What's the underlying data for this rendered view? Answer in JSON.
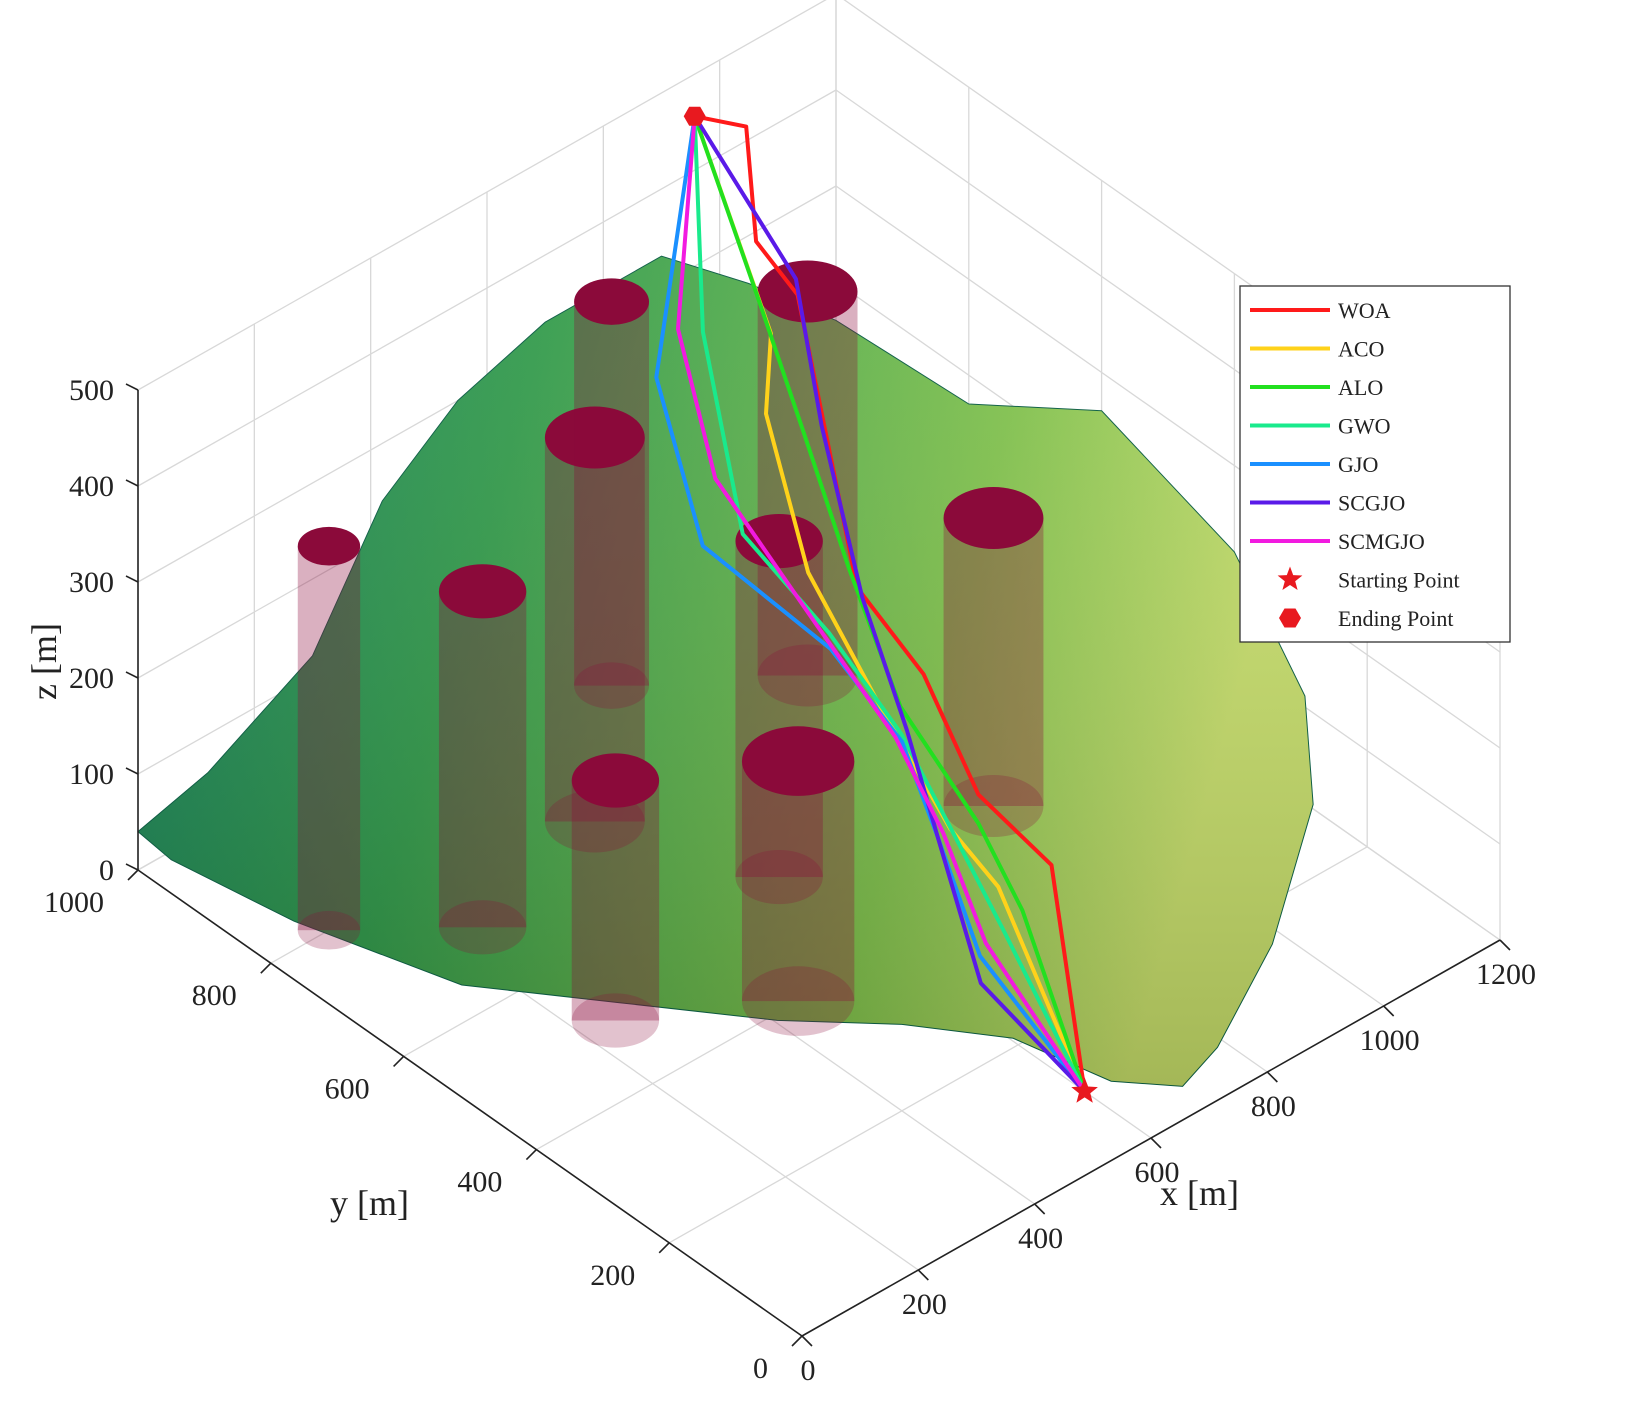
{
  "chart_data": {
    "type": "line",
    "view": "3d-perspective",
    "xlabel": "x [m]",
    "ylabel": "y [m]",
    "zlabel": "z [m]",
    "xlim": [
      0,
      1200
    ],
    "ylim": [
      0,
      1000
    ],
    "zlim": [
      0,
      500
    ],
    "x_ticks": [
      "0",
      "200",
      "400",
      "600",
      "800",
      "1000",
      "1200"
    ],
    "y_ticks": [
      "0",
      "200",
      "400",
      "600",
      "800",
      "1000"
    ],
    "z_ticks": [
      "0",
      "100",
      "200",
      "300",
      "400",
      "500"
    ],
    "grid": true,
    "legend_position": "top-right",
    "surface": {
      "kind": "terrain",
      "colormap": [
        "#0e7a5a",
        "#2f9a48",
        "#7fc24a",
        "#c8e06a"
      ]
    },
    "obstacles": {
      "shape": "cylinder",
      "color": "#8b0a3a",
      "items": [
        {
          "x": 100,
          "y": 800,
          "r": 50,
          "h": 400
        },
        {
          "x": 250,
          "y": 700,
          "r": 70,
          "h": 350
        },
        {
          "x": 500,
          "y": 750,
          "r": 80,
          "h": 400
        },
        {
          "x": 600,
          "y": 560,
          "r": 70,
          "h": 350
        },
        {
          "x": 700,
          "y": 900,
          "r": 60,
          "h": 400
        },
        {
          "x": 250,
          "y": 500,
          "r": 70,
          "h": 250
        },
        {
          "x": 450,
          "y": 400,
          "r": 90,
          "h": 250
        },
        {
          "x": 900,
          "y": 780,
          "r": 80,
          "h": 400
        },
        {
          "x": 900,
          "y": 500,
          "r": 80,
          "h": 300
        }
      ]
    },
    "start_point": {
      "x": 600,
      "y": 100,
      "z": 0,
      "color": "#e8191f",
      "marker": "pentagram"
    },
    "end_point": {
      "x": 900,
      "y": 950,
      "z": 500,
      "color": "#e8191f",
      "marker": "hexagram"
    },
    "series": [
      {
        "name": "WOA",
        "color": "#ff1a1a",
        "points": [
          [
            600,
            100,
            0
          ],
          [
            680,
            220,
            150
          ],
          [
            680,
            330,
            170
          ],
          [
            700,
            430,
            240
          ],
          [
            780,
            600,
            220
          ],
          [
            860,
            760,
            420
          ],
          [
            880,
            840,
            430
          ],
          [
            1000,
            960,
            450
          ],
          [
            900,
            950,
            500
          ]
        ]
      },
      {
        "name": "ACO",
        "color": "#ffd21a",
        "points": [
          [
            600,
            100,
            0
          ],
          [
            600,
            230,
            150
          ],
          [
            620,
            320,
            160
          ],
          [
            620,
            430,
            240
          ],
          [
            650,
            560,
            300
          ],
          [
            760,
            720,
            350
          ],
          [
            860,
            800,
            360
          ],
          [
            900,
            950,
            500
          ]
        ]
      },
      {
        "name": "ALO",
        "color": "#22e01f",
        "points": [
          [
            600,
            100,
            0
          ],
          [
            630,
            220,
            120
          ],
          [
            680,
            330,
            140
          ],
          [
            660,
            430,
            220
          ],
          [
            720,
            560,
            280
          ],
          [
            800,
            700,
            330
          ],
          [
            840,
            800,
            400
          ],
          [
            900,
            950,
            500
          ]
        ]
      },
      {
        "name": "GWO",
        "color": "#19ea8c",
        "points": [
          [
            600,
            100,
            0
          ],
          [
            610,
            230,
            100
          ],
          [
            640,
            330,
            140
          ],
          [
            650,
            420,
            200
          ],
          [
            640,
            520,
            260
          ],
          [
            640,
            650,
            300
          ],
          [
            720,
            780,
            420
          ],
          [
            900,
            950,
            500
          ]
        ]
      },
      {
        "name": "GJO",
        "color": "#1a90ff",
        "points": [
          [
            600,
            100,
            0
          ],
          [
            580,
            240,
            80
          ],
          [
            610,
            330,
            150
          ],
          [
            640,
            410,
            200
          ],
          [
            620,
            500,
            260
          ],
          [
            560,
            640,
            320
          ],
          [
            640,
            780,
            400
          ],
          [
            900,
            950,
            500
          ]
        ]
      },
      {
        "name": "SCGJO",
        "color": "#5a1ae8",
        "points": [
          [
            600,
            100,
            0
          ],
          [
            570,
            230,
            60
          ],
          [
            610,
            330,
            150
          ],
          [
            660,
            420,
            200
          ],
          [
            720,
            540,
            260
          ],
          [
            810,
            680,
            340
          ],
          [
            880,
            780,
            420
          ],
          [
            900,
            950,
            500
          ]
        ]
      },
      {
        "name": "SCMGJO",
        "color": "#f21ae0",
        "points": [
          [
            600,
            100,
            0
          ],
          [
            590,
            240,
            90
          ],
          [
            620,
            330,
            150
          ],
          [
            640,
            420,
            200
          ],
          [
            640,
            540,
            260
          ],
          [
            650,
            700,
            330
          ],
          [
            700,
            800,
            420
          ],
          [
            900,
            950,
            500
          ]
        ]
      }
    ],
    "legend_entries": [
      "WOA",
      "ACO",
      "ALO",
      "GWO",
      "GJO",
      "SCGJO",
      "SCMGJO",
      "Starting Point",
      "Ending Point"
    ]
  }
}
